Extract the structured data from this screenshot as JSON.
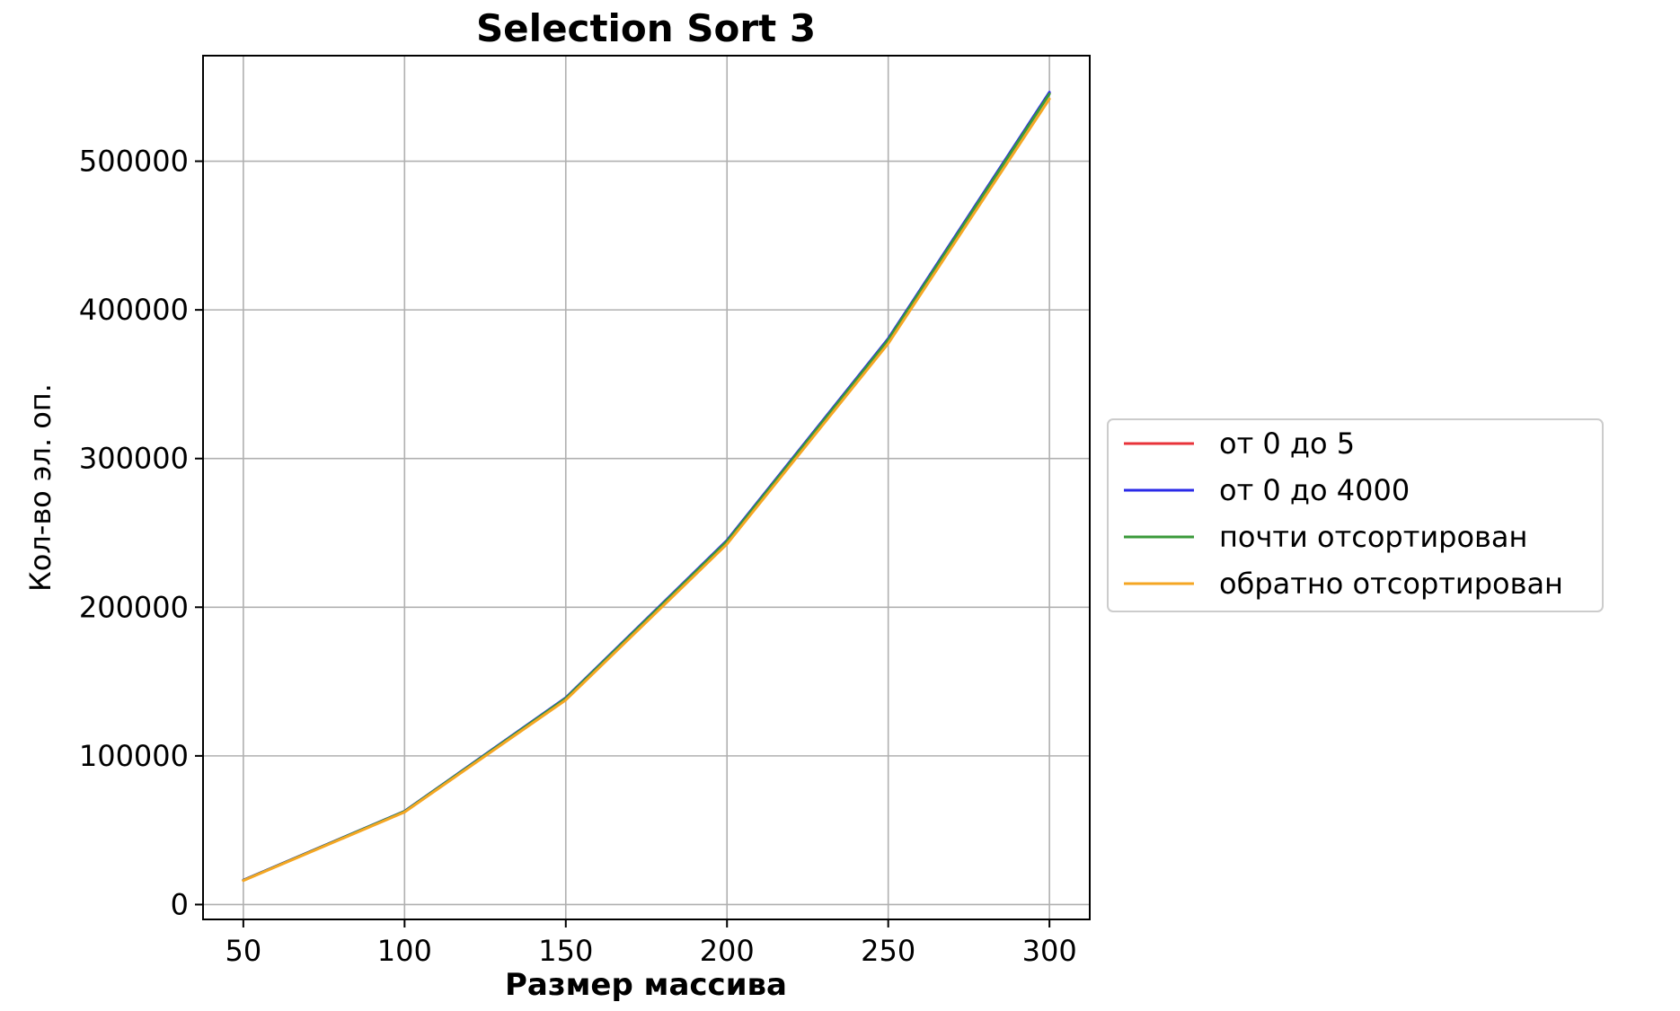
{
  "chart_data": {
    "type": "line",
    "title": "Selection Sort 3",
    "xlabel": "Размер массива",
    "ylabel": "Кол-во эл. оп.",
    "x": [
      50,
      100,
      150,
      200,
      250,
      300
    ],
    "xticks": [
      "50",
      "100",
      "150",
      "200",
      "250",
      "300"
    ],
    "yticks": [
      "0",
      "100000",
      "200000",
      "300000",
      "400000",
      "500000"
    ],
    "ytick_values": [
      0,
      100000,
      200000,
      300000,
      400000,
      500000
    ],
    "xlim": [
      37.5,
      312.5
    ],
    "ylim": [
      -10000,
      571000
    ],
    "grid": true,
    "legend_position": "center-right",
    "series": [
      {
        "name": "от 0 до 5",
        "color": "#e8333a",
        "values": [
          16400,
          62700,
          138900,
          244500,
          380100,
          545700
        ]
      },
      {
        "name": "от 0 до 4000",
        "color": "#2a2ae8",
        "values": [
          16400,
          62800,
          139100,
          245000,
          380700,
          546400
        ]
      },
      {
        "name": "почти отсортирован",
        "color": "#3a9a3a",
        "values": [
          16300,
          62600,
          138700,
          244300,
          379800,
          545300
        ]
      },
      {
        "name": "обратно отсортирован",
        "color": "#f5a623",
        "values": [
          16100,
          62200,
          137600,
          242500,
          377400,
          541900
        ]
      }
    ]
  }
}
